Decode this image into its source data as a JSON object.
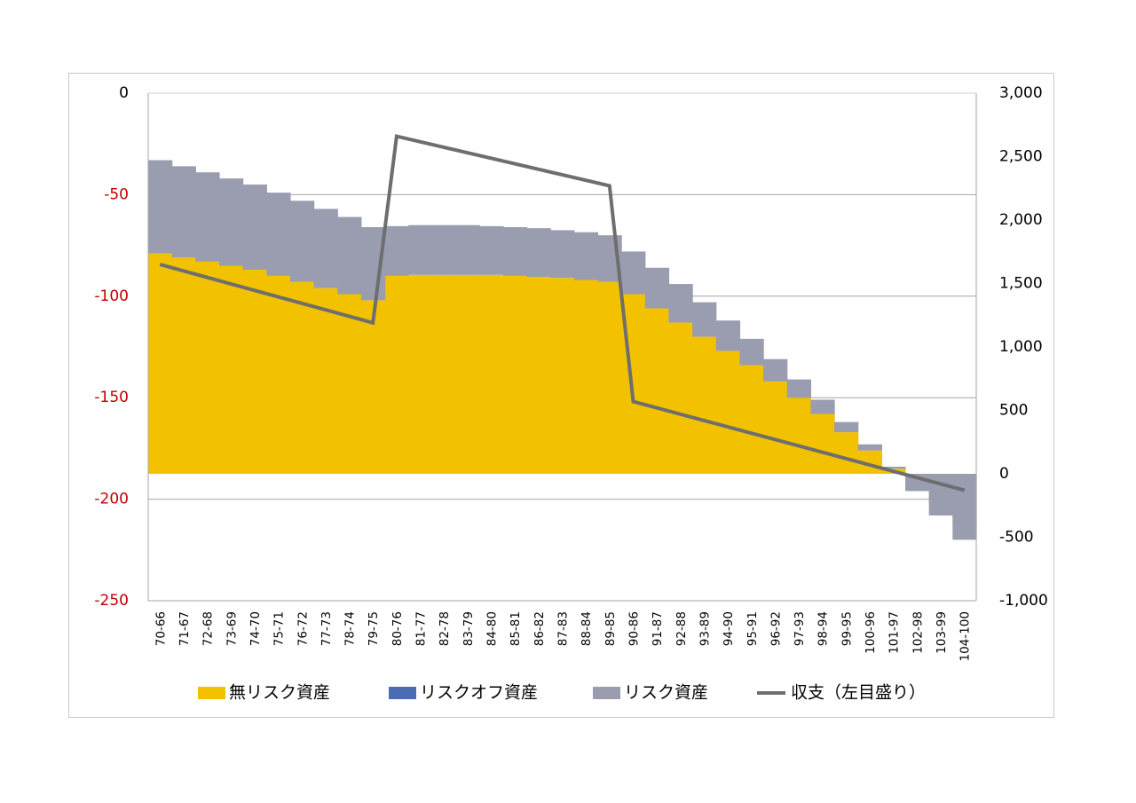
{
  "chart_data": {
    "type": "bar",
    "stacked": true,
    "categories": [
      "70-66",
      "71-67",
      "72-68",
      "73-69",
      "74-70",
      "75-71",
      "76-72",
      "77-73",
      "78-74",
      "79-75",
      "80-76",
      "81-77",
      "82-78",
      "83-79",
      "84-80",
      "85-81",
      "86-82",
      "87-83",
      "88-84",
      "89-85",
      "90-86",
      "91-87",
      "92-88",
      "93-89",
      "94-90",
      "95-91",
      "96-92",
      "97-93",
      "98-94",
      "99-95",
      "100-96",
      "101-97",
      "102-98",
      "103-99",
      "104-100"
    ],
    "y_left": {
      "ylim": [
        -250,
        0
      ],
      "ticks": [
        0,
        -50,
        -100,
        -150,
        -200,
        -250
      ],
      "tick_labels": [
        "0",
        "-50",
        "-100",
        "-150",
        "-200",
        "-250"
      ],
      "tick_colors": [
        "#000000",
        "#c00000",
        "#c00000",
        "#c00000",
        "#c00000",
        "#c00000"
      ]
    },
    "y_right": {
      "ylim": [
        -1000,
        3000
      ],
      "ticks": [
        3000,
        2500,
        2000,
        1500,
        1000,
        500,
        0,
        -500,
        -1000
      ],
      "tick_labels": [
        "3,000",
        "2,500",
        "2,000",
        "1,500",
        "1,000",
        "500",
        "0",
        "-500",
        "-1,000"
      ]
    },
    "base": -187.5,
    "series": [
      {
        "name": "無リスク資産",
        "color": "#f2c200",
        "kind": "bar",
        "tops": [
          -79,
          -81,
          -83,
          -85,
          -87,
          -90,
          -93,
          -96,
          -99,
          -102,
          -90,
          -89.5,
          -89.5,
          -89.5,
          -89.5,
          -90,
          -90.5,
          -91,
          -92,
          -93,
          -99,
          -106,
          -113,
          -120,
          -127,
          -134,
          -142,
          -150,
          -158,
          -167,
          -176,
          -185,
          -194,
          -203,
          -213
        ],
        "bottoms": [
          -187.5,
          -187.5,
          -187.5,
          -187.5,
          -187.5,
          -187.5,
          -187.5,
          -187.5,
          -187.5,
          -187.5,
          -187.5,
          -187.5,
          -187.5,
          -187.5,
          -187.5,
          -187.5,
          -187.5,
          -187.5,
          -187.5,
          -187.5,
          -187.5,
          -187.5,
          -187.5,
          -187.5,
          -187.5,
          -187.5,
          -187.5,
          -187.5,
          -187.5,
          -187.5,
          -187.5,
          -187.5,
          -187.5,
          -187.5,
          -187.5
        ]
      },
      {
        "name": "リスクオフ資産",
        "color": "#4a6cb3",
        "kind": "bar",
        "values": [
          0,
          0,
          0,
          0,
          0,
          0,
          0,
          0,
          0,
          0,
          0,
          0,
          0,
          0,
          0,
          0,
          0,
          0,
          0,
          0,
          0,
          0,
          0,
          0,
          0,
          0,
          0,
          0,
          0,
          0,
          0,
          0,
          0,
          0,
          0
        ]
      },
      {
        "name": "リスク資産",
        "color": "#9a9caf",
        "kind": "bar",
        "tops": [
          -33,
          -36,
          -39,
          -42,
          -45,
          -49,
          -53,
          -57,
          -61,
          -66,
          -65.5,
          -65,
          -65,
          -65,
          -65.5,
          -66,
          -66.5,
          -67.5,
          -68.5,
          -70,
          -78,
          -86,
          -94,
          -103,
          -112,
          -121,
          -131,
          -141,
          -151,
          -162,
          -173,
          -184,
          -196,
          -208,
          -220
        ],
        "bottoms": [
          -79,
          -81,
          -83,
          -85,
          -87,
          -90,
          -93,
          -96,
          -99,
          -102,
          -90,
          -89.5,
          -89.5,
          -89.5,
          -89.5,
          -90,
          -90.5,
          -91,
          -92,
          -93,
          -99,
          -106,
          -113,
          -120,
          -127,
          -134,
          -142,
          -150,
          -158,
          -167,
          -176,
          -185,
          -187.5,
          -187.5,
          -187.5
        ]
      },
      {
        "name": "収支（左目盛り）",
        "color": "#6e6e6e",
        "kind": "line",
        "axis": "right",
        "points": [
          {
            "x": "70-66",
            "y": 1650
          },
          {
            "x": "79-75",
            "y": 1190
          },
          {
            "x": "80-76",
            "y": 2660
          },
          {
            "x": "89-85",
            "y": 2270
          },
          {
            "x": "90-86",
            "y": 570
          },
          {
            "x": "104-100",
            "y": -130
          }
        ]
      }
    ],
    "grid": true,
    "legend_position": "bottom"
  }
}
